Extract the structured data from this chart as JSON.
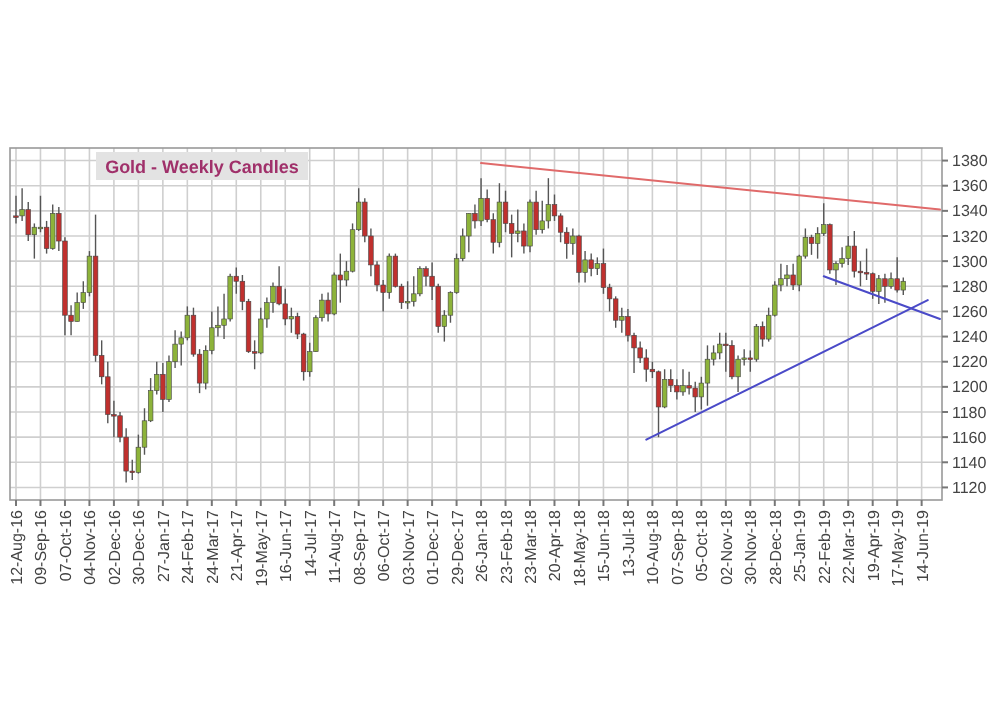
{
  "chart_data": {
    "type": "candlestick",
    "title": "Gold - Weekly Candles",
    "categories": [
      "12-Aug-16",
      null,
      null,
      null,
      "09-Sep-16",
      null,
      null,
      null,
      "07-Oct-16",
      null,
      null,
      null,
      "04-Nov-16",
      null,
      null,
      null,
      "02-Dec-16",
      null,
      null,
      null,
      "30-Dec-16",
      null,
      null,
      null,
      "27-Jan-17",
      null,
      null,
      null,
      "24-Feb-17",
      null,
      null,
      null,
      "24-Mar-17",
      null,
      null,
      null,
      "21-Apr-17",
      null,
      null,
      null,
      "19-May-17",
      null,
      null,
      null,
      "16-Jun-17",
      null,
      null,
      null,
      "14-Jul-17",
      null,
      null,
      null,
      "11-Aug-17",
      null,
      null,
      null,
      "08-Sep-17",
      null,
      null,
      null,
      "06-Oct-17",
      null,
      null,
      null,
      "03-Nov-17",
      null,
      null,
      null,
      "01-Dec-17",
      null,
      null,
      null,
      "29-Dec-17",
      null,
      null,
      null,
      "26-Jan-18",
      null,
      null,
      null,
      "23-Feb-18",
      null,
      null,
      null,
      "23-Mar-18",
      null,
      null,
      null,
      "20-Apr-18",
      null,
      null,
      null,
      "18-May-18",
      null,
      null,
      null,
      "15-Jun-18",
      null,
      null,
      null,
      "13-Jul-18",
      null,
      null,
      null,
      "10-Aug-18",
      null,
      null,
      null,
      "07-Sep-18",
      null,
      null,
      null,
      "05-Oct-18",
      null,
      null,
      null,
      "02-Nov-18",
      null,
      null,
      null,
      "30-Nov-18",
      null,
      null,
      null,
      "28-Dec-18",
      null,
      null,
      null,
      "25-Jan-19",
      null,
      null,
      null,
      "22-Feb-19",
      null,
      null,
      null,
      "22-Mar-19",
      null,
      null,
      null,
      "19-Apr-19",
      null,
      null,
      null,
      "17-May-19",
      null,
      null,
      null,
      "14-Jun-19",
      null,
      null,
      null
    ],
    "ohlc": [
      [
        1336,
        1352,
        1330,
        1335
      ],
      [
        1336,
        1358,
        1332,
        1341
      ],
      [
        1341,
        1347,
        1316,
        1321
      ],
      [
        1321,
        1330,
        1302,
        1327
      ],
      [
        1327,
        1352,
        1323,
        1327
      ],
      [
        1327,
        1332,
        1306,
        1310
      ],
      [
        1310,
        1345,
        1309,
        1338
      ],
      [
        1338,
        1343,
        1308,
        1316
      ],
      [
        1316,
        1319,
        1241,
        1257
      ],
      [
        1257,
        1265,
        1241,
        1252
      ],
      [
        1252,
        1275,
        1252,
        1267
      ],
      [
        1267,
        1284,
        1262,
        1275
      ],
      [
        1275,
        1308,
        1272,
        1304
      ],
      [
        1304,
        1337,
        1220,
        1225
      ],
      [
        1225,
        1237,
        1202,
        1208
      ],
      [
        1208,
        1220,
        1171,
        1178
      ],
      [
        1178,
        1189,
        1160,
        1177
      ],
      [
        1177,
        1180,
        1156,
        1160
      ],
      [
        1160,
        1167,
        1124,
        1133
      ],
      [
        1133,
        1142,
        1126,
        1132
      ],
      [
        1132,
        1162,
        1131,
        1152
      ],
      [
        1152,
        1183,
        1146,
        1173
      ],
      [
        1173,
        1207,
        1172,
        1197
      ],
      [
        1197,
        1220,
        1194,
        1210
      ],
      [
        1210,
        1219,
        1180,
        1190
      ],
      [
        1190,
        1225,
        1188,
        1220
      ],
      [
        1220,
        1245,
        1215,
        1234
      ],
      [
        1234,
        1244,
        1217,
        1239
      ],
      [
        1239,
        1264,
        1237,
        1257
      ],
      [
        1257,
        1263,
        1224,
        1226
      ],
      [
        1226,
        1230,
        1195,
        1203
      ],
      [
        1203,
        1233,
        1198,
        1229
      ],
      [
        1229,
        1260,
        1226,
        1247
      ],
      [
        1247,
        1264,
        1240,
        1249
      ],
      [
        1249,
        1274,
        1238,
        1254
      ],
      [
        1254,
        1290,
        1252,
        1288
      ],
      [
        1288,
        1295,
        1274,
        1284
      ],
      [
        1284,
        1289,
        1261,
        1268
      ],
      [
        1268,
        1270,
        1227,
        1228
      ],
      [
        1228,
        1237,
        1214,
        1227
      ],
      [
        1227,
        1263,
        1226,
        1254
      ],
      [
        1254,
        1271,
        1247,
        1267
      ],
      [
        1267,
        1283,
        1259,
        1280
      ],
      [
        1280,
        1296,
        1265,
        1266
      ],
      [
        1266,
        1278,
        1249,
        1254
      ],
      [
        1254,
        1263,
        1243,
        1256
      ],
      [
        1256,
        1259,
        1238,
        1242
      ],
      [
        1242,
        1243,
        1205,
        1212
      ],
      [
        1212,
        1235,
        1208,
        1228
      ],
      [
        1228,
        1257,
        1228,
        1255
      ],
      [
        1255,
        1274,
        1252,
        1269
      ],
      [
        1269,
        1275,
        1252,
        1258
      ],
      [
        1258,
        1291,
        1257,
        1289
      ],
      [
        1289,
        1306,
        1267,
        1285
      ],
      [
        1285,
        1300,
        1280,
        1292
      ],
      [
        1292,
        1330,
        1291,
        1325
      ],
      [
        1325,
        1358,
        1324,
        1347
      ],
      [
        1347,
        1350,
        1315,
        1320
      ],
      [
        1320,
        1326,
        1288,
        1297
      ],
      [
        1297,
        1300,
        1276,
        1281
      ],
      [
        1281,
        1285,
        1260,
        1275
      ],
      [
        1275,
        1306,
        1270,
        1304
      ],
      [
        1304,
        1306,
        1279,
        1280
      ],
      [
        1280,
        1282,
        1262,
        1267
      ],
      [
        1267,
        1284,
        1262,
        1268
      ],
      [
        1268,
        1288,
        1264,
        1274
      ],
      [
        1274,
        1296,
        1272,
        1294
      ],
      [
        1294,
        1296,
        1280,
        1288
      ],
      [
        1288,
        1299,
        1269,
        1280
      ],
      [
        1280,
        1282,
        1243,
        1248
      ],
      [
        1248,
        1261,
        1236,
        1257
      ],
      [
        1257,
        1276,
        1251,
        1275
      ],
      [
        1275,
        1306,
        1274,
        1302
      ],
      [
        1302,
        1326,
        1300,
        1320
      ],
      [
        1320,
        1338,
        1307,
        1338
      ],
      [
        1338,
        1345,
        1326,
        1332
      ],
      [
        1332,
        1366,
        1328,
        1350
      ],
      [
        1350,
        1357,
        1331,
        1333
      ],
      [
        1333,
        1338,
        1306,
        1315
      ],
      [
        1315,
        1362,
        1311,
        1347
      ],
      [
        1347,
        1356,
        1323,
        1330
      ],
      [
        1330,
        1337,
        1303,
        1322
      ],
      [
        1322,
        1341,
        1315,
        1324
      ],
      [
        1324,
        1330,
        1306,
        1312
      ],
      [
        1312,
        1349,
        1307,
        1347
      ],
      [
        1347,
        1356,
        1321,
        1325
      ],
      [
        1325,
        1348,
        1322,
        1332
      ],
      [
        1332,
        1366,
        1326,
        1345
      ],
      [
        1345,
        1353,
        1332,
        1336
      ],
      [
        1336,
        1338,
        1315,
        1323
      ],
      [
        1323,
        1327,
        1302,
        1314
      ],
      [
        1314,
        1326,
        1305,
        1320
      ],
      [
        1320,
        1321,
        1283,
        1291
      ],
      [
        1291,
        1308,
        1283,
        1301
      ],
      [
        1301,
        1306,
        1288,
        1294
      ],
      [
        1294,
        1303,
        1289,
        1298
      ],
      [
        1298,
        1310,
        1274,
        1279
      ],
      [
        1279,
        1282,
        1260,
        1270
      ],
      [
        1270,
        1272,
        1247,
        1253
      ],
      [
        1253,
        1263,
        1243,
        1256
      ],
      [
        1256,
        1262,
        1236,
        1241
      ],
      [
        1241,
        1243,
        1211,
        1231
      ],
      [
        1231,
        1236,
        1219,
        1223
      ],
      [
        1223,
        1230,
        1204,
        1214
      ],
      [
        1214,
        1220,
        1207,
        1212
      ],
      [
        1212,
        1213,
        1160,
        1184
      ],
      [
        1184,
        1214,
        1183,
        1206
      ],
      [
        1206,
        1214,
        1196,
        1201
      ],
      [
        1201,
        1206,
        1190,
        1196
      ],
      [
        1196,
        1214,
        1193,
        1201
      ],
      [
        1201,
        1212,
        1194,
        1199
      ],
      [
        1199,
        1204,
        1180,
        1192
      ],
      [
        1192,
        1208,
        1182,
        1203
      ],
      [
        1203,
        1233,
        1185,
        1222
      ],
      [
        1222,
        1233,
        1217,
        1227
      ],
      [
        1227,
        1243,
        1222,
        1234
      ],
      [
        1234,
        1243,
        1212,
        1233
      ],
      [
        1233,
        1237,
        1206,
        1208
      ],
      [
        1208,
        1225,
        1196,
        1222
      ],
      [
        1222,
        1230,
        1217,
        1223
      ],
      [
        1223,
        1229,
        1212,
        1222
      ],
      [
        1222,
        1250,
        1220,
        1248
      ],
      [
        1248,
        1252,
        1232,
        1238
      ],
      [
        1238,
        1263,
        1236,
        1257
      ],
      [
        1257,
        1284,
        1256,
        1281
      ],
      [
        1281,
        1298,
        1276,
        1286
      ],
      [
        1286,
        1297,
        1280,
        1289
      ],
      [
        1289,
        1298,
        1277,
        1281
      ],
      [
        1281,
        1305,
        1276,
        1304
      ],
      [
        1304,
        1326,
        1302,
        1319
      ],
      [
        1319,
        1321,
        1305,
        1314
      ],
      [
        1314,
        1327,
        1302,
        1322
      ],
      [
        1322,
        1346,
        1320,
        1329
      ],
      [
        1329,
        1330,
        1290,
        1293
      ],
      [
        1293,
        1300,
        1281,
        1298
      ],
      [
        1298,
        1311,
        1295,
        1302
      ],
      [
        1302,
        1320,
        1297,
        1312
      ],
      [
        1312,
        1324,
        1287,
        1292
      ],
      [
        1292,
        1300,
        1280,
        1291
      ],
      [
        1291,
        1310,
        1285,
        1290
      ],
      [
        1290,
        1291,
        1270,
        1276
      ],
      [
        1276,
        1289,
        1266,
        1286
      ],
      [
        1286,
        1290,
        1267,
        1280
      ],
      [
        1280,
        1291,
        1278,
        1286
      ],
      [
        1286,
        1303,
        1275,
        1277
      ],
      [
        1277,
        1287,
        1273,
        1284
      ],
      null,
      null,
      null,
      null,
      null,
      null
    ],
    "colors": [
      "#c0302e",
      "#8db33a",
      "#c0302e",
      "#8db33a",
      "#8db33a",
      "#c0302e",
      "#8db33a",
      "#c0302e",
      "#c0302e",
      "#c0302e",
      "#8db33a",
      "#8db33a",
      "#8db33a",
      "#c0302e",
      "#c0302e",
      "#c0302e",
      "#c0302e",
      "#c0302e",
      "#c0302e",
      "#c0302e",
      "#8db33a",
      "#8db33a",
      "#8db33a",
      "#8db33a",
      "#c0302e",
      "#8db33a",
      "#8db33a",
      "#8db33a",
      "#8db33a",
      "#c0302e",
      "#c0302e",
      "#8db33a",
      "#8db33a",
      "#8db33a",
      "#8db33a",
      "#8db33a",
      "#c0302e",
      "#c0302e",
      "#c0302e",
      "#c0302e",
      "#8db33a",
      "#8db33a",
      "#8db33a",
      "#c0302e",
      "#c0302e",
      "#8db33a",
      "#c0302e",
      "#c0302e",
      "#8db33a",
      "#8db33a",
      "#8db33a",
      "#c0302e",
      "#8db33a",
      "#c0302e",
      "#8db33a",
      "#8db33a",
      "#8db33a",
      "#c0302e",
      "#c0302e",
      "#c0302e",
      "#c0302e",
      "#8db33a",
      "#c0302e",
      "#c0302e",
      "#8db33a",
      "#8db33a",
      "#8db33a",
      "#c0302e",
      "#c0302e",
      "#c0302e",
      "#8db33a",
      "#8db33a",
      "#8db33a",
      "#8db33a",
      "#8db33a",
      "#c0302e",
      "#8db33a",
      "#c0302e",
      "#c0302e",
      "#8db33a",
      "#c0302e",
      "#c0302e",
      "#8db33a",
      "#c0302e",
      "#8db33a",
      "#c0302e",
      "#8db33a",
      "#8db33a",
      "#c0302e",
      "#c0302e",
      "#c0302e",
      "#8db33a",
      "#c0302e",
      "#8db33a",
      "#c0302e",
      "#8db33a",
      "#c0302e",
      "#c0302e",
      "#c0302e",
      "#8db33a",
      "#c0302e",
      "#c0302e",
      "#c0302e",
      "#c0302e",
      "#c0302e",
      "#c0302e",
      "#8db33a",
      "#c0302e",
      "#c0302e",
      "#8db33a",
      "#c0302e",
      "#c0302e",
      "#8db33a",
      "#8db33a",
      "#8db33a",
      "#8db33a",
      "#c0302e",
      "#c0302e",
      "#8db33a",
      "#8db33a",
      "#c0302e",
      "#8db33a",
      "#c0302e",
      "#8db33a",
      "#8db33a",
      "#8db33a",
      "#8db33a",
      "#c0302e",
      "#8db33a",
      "#8db33a",
      "#c0302e",
      "#8db33a",
      "#8db33a",
      "#c0302e",
      "#8db33a",
      "#8db33a",
      "#8db33a",
      "#c0302e",
      "#c0302e",
      "#c0302e",
      "#c0302e",
      "#8db33a",
      "#c0302e",
      "#8db33a",
      "#c0302e",
      "#8db33a",
      null,
      null,
      null,
      null,
      null,
      null
    ],
    "ylim": [
      1110,
      1390
    ],
    "yticks": [
      1120,
      1140,
      1160,
      1180,
      1200,
      1220,
      1240,
      1260,
      1280,
      1300,
      1320,
      1340,
      1360,
      1380
    ],
    "grid": true,
    "series": [
      {
        "type": "line",
        "color": "#e06a6a",
        "values": [
          null,
          null,
          null,
          null,
          null,
          null,
          null,
          null,
          null,
          null,
          null,
          null,
          null,
          null,
          null,
          null,
          null,
          null,
          null,
          null,
          null,
          null,
          null,
          null,
          null,
          null,
          null,
          null,
          null,
          null,
          null,
          null,
          null,
          null,
          null,
          null,
          null,
          null,
          null,
          null,
          null,
          null,
          null,
          null,
          null,
          null,
          null,
          null,
          null,
          null,
          null,
          null,
          null,
          null,
          null,
          null,
          null,
          null,
          null,
          null,
          null,
          null,
          null,
          null,
          null,
          null,
          null,
          null,
          null,
          null,
          null,
          null,
          null,
          null,
          null,
          null,
          1378,
          null,
          null,
          null,
          null,
          null,
          null,
          null,
          null,
          null,
          null,
          null,
          null,
          null,
          null,
          null,
          null,
          null,
          null,
          null,
          null,
          null,
          null,
          null,
          null,
          null,
          null,
          null,
          null,
          null,
          null,
          null,
          null,
          null,
          null,
          null,
          null,
          null,
          null,
          null,
          null,
          null,
          null,
          null,
          null,
          null,
          null,
          null,
          null,
          null,
          null,
          null,
          null,
          null,
          null,
          null,
          null,
          null,
          null,
          null,
          null,
          null,
          null,
          null,
          null,
          null,
          null,
          null,
          null,
          null,
          null,
          null,
          null,
          null,
          null,
          1341
        ]
      },
      {
        "type": "line",
        "color": "#4a4ac8",
        "values": [
          null,
          null,
          null,
          null,
          null,
          null,
          null,
          null,
          null,
          null,
          null,
          null,
          null,
          null,
          null,
          null,
          null,
          null,
          null,
          null,
          null,
          null,
          null,
          null,
          null,
          null,
          null,
          null,
          null,
          null,
          null,
          null,
          null,
          null,
          null,
          null,
          null,
          null,
          null,
          null,
          null,
          null,
          null,
          null,
          null,
          null,
          null,
          null,
          null,
          null,
          null,
          null,
          null,
          null,
          null,
          null,
          null,
          null,
          null,
          null,
          null,
          null,
          null,
          null,
          null,
          null,
          null,
          null,
          null,
          null,
          null,
          null,
          null,
          null,
          null,
          null,
          null,
          null,
          null,
          null,
          null,
          null,
          null,
          null,
          null,
          null,
          null,
          null,
          null,
          null,
          null,
          null,
          null,
          null,
          null,
          null,
          null,
          null,
          null,
          null,
          null,
          null,
          null,
          1158,
          null,
          null,
          null,
          null,
          null,
          null,
          null,
          null,
          null,
          null,
          null,
          null,
          null,
          null,
          null,
          null,
          null,
          null,
          null,
          null,
          null,
          null,
          null,
          null,
          null,
          null,
          null,
          null,
          null,
          null,
          null,
          null,
          null,
          null,
          null,
          null,
          null,
          null,
          null,
          null,
          null,
          null,
          null,
          null,
          null,
          1269,
          null,
          null
        ]
      },
      {
        "type": "line",
        "color": "#4a4ac8",
        "values": [
          null,
          null,
          null,
          null,
          null,
          null,
          null,
          null,
          null,
          null,
          null,
          null,
          null,
          null,
          null,
          null,
          null,
          null,
          null,
          null,
          null,
          null,
          null,
          null,
          null,
          null,
          null,
          null,
          null,
          null,
          null,
          null,
          null,
          null,
          null,
          null,
          null,
          null,
          null,
          null,
          null,
          null,
          null,
          null,
          null,
          null,
          null,
          null,
          null,
          null,
          null,
          null,
          null,
          null,
          null,
          null,
          null,
          null,
          null,
          null,
          null,
          null,
          null,
          null,
          null,
          null,
          null,
          null,
          null,
          null,
          null,
          null,
          null,
          null,
          null,
          null,
          null,
          null,
          null,
          null,
          null,
          null,
          null,
          null,
          null,
          null,
          null,
          null,
          null,
          null,
          null,
          null,
          null,
          null,
          null,
          null,
          null,
          null,
          null,
          null,
          null,
          null,
          null,
          null,
          null,
          null,
          null,
          null,
          null,
          null,
          null,
          null,
          null,
          null,
          null,
          null,
          null,
          null,
          null,
          null,
          null,
          null,
          null,
          null,
          null,
          null,
          null,
          null,
          null,
          null,
          null,
          null,
          1288,
          null,
          null,
          null,
          null,
          null,
          null,
          null,
          null,
          null,
          null,
          null,
          null,
          null,
          null,
          null,
          null,
          null,
          null,
          1254
        ]
      }
    ]
  }
}
